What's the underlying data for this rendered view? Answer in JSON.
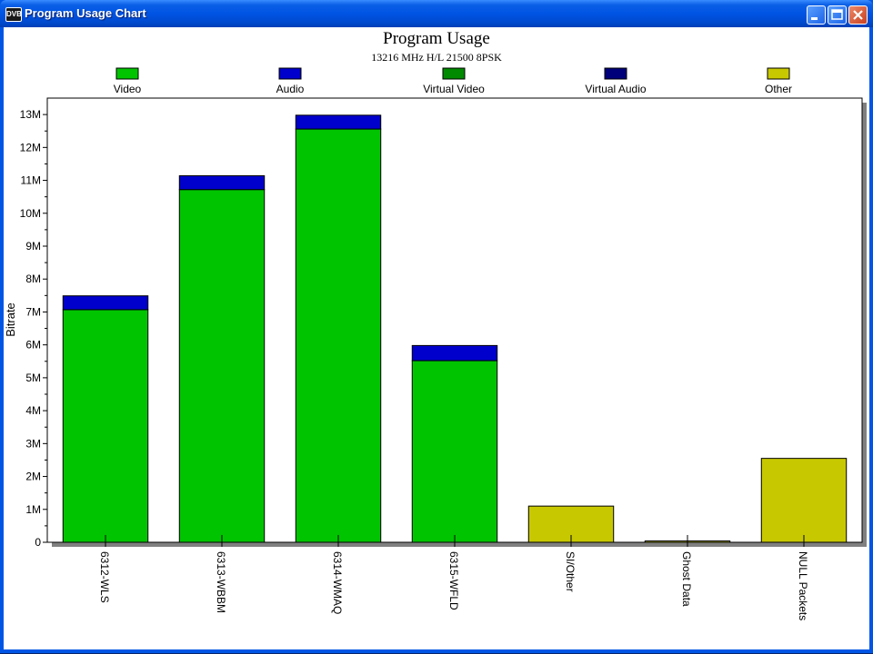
{
  "window": {
    "title": "Program Usage Chart",
    "app_icon_text": "DVB"
  },
  "chart_data": {
    "type": "bar",
    "stacked": true,
    "title": "Program Usage",
    "subtitle": "13216 MHz H/L 21500 8PSK",
    "xlabel": "",
    "ylabel": "Bitrate",
    "ylim": [
      0,
      13500000
    ],
    "yticks": [
      0,
      1000000,
      2000000,
      3000000,
      4000000,
      5000000,
      6000000,
      7000000,
      8000000,
      9000000,
      10000000,
      11000000,
      12000000,
      13000000
    ],
    "ytick_labels": [
      "0",
      "1M",
      "2M",
      "3M",
      "4M",
      "5M",
      "6M",
      "7M",
      "8M",
      "9M",
      "10M",
      "11M",
      "12M",
      "13M"
    ],
    "categories": [
      "6312-WLS",
      "6313-WBBM",
      "6314-WMAQ",
      "6315-WFLD",
      "SI/Other",
      "Ghost Data",
      "NULL Packets"
    ],
    "legend_position": "top",
    "grid": false,
    "series": [
      {
        "name": "Video",
        "color": "#00c400",
        "values": [
          7070000,
          10720000,
          12560000,
          5520000,
          0,
          0,
          0
        ]
      },
      {
        "name": "Audio",
        "color": "#0000cc",
        "values": [
          420000,
          420000,
          420000,
          460000,
          0,
          0,
          0
        ]
      },
      {
        "name": "Virtual Video",
        "color": "#008a00",
        "values": [
          0,
          0,
          0,
          0,
          0,
          0,
          0
        ]
      },
      {
        "name": "Virtual Audio",
        "color": "#00007a",
        "values": [
          0,
          0,
          0,
          0,
          0,
          0,
          0
        ]
      },
      {
        "name": "Other",
        "color": "#c8c800",
        "values": [
          0,
          0,
          0,
          0,
          1100000,
          40000,
          2550000
        ]
      }
    ]
  }
}
